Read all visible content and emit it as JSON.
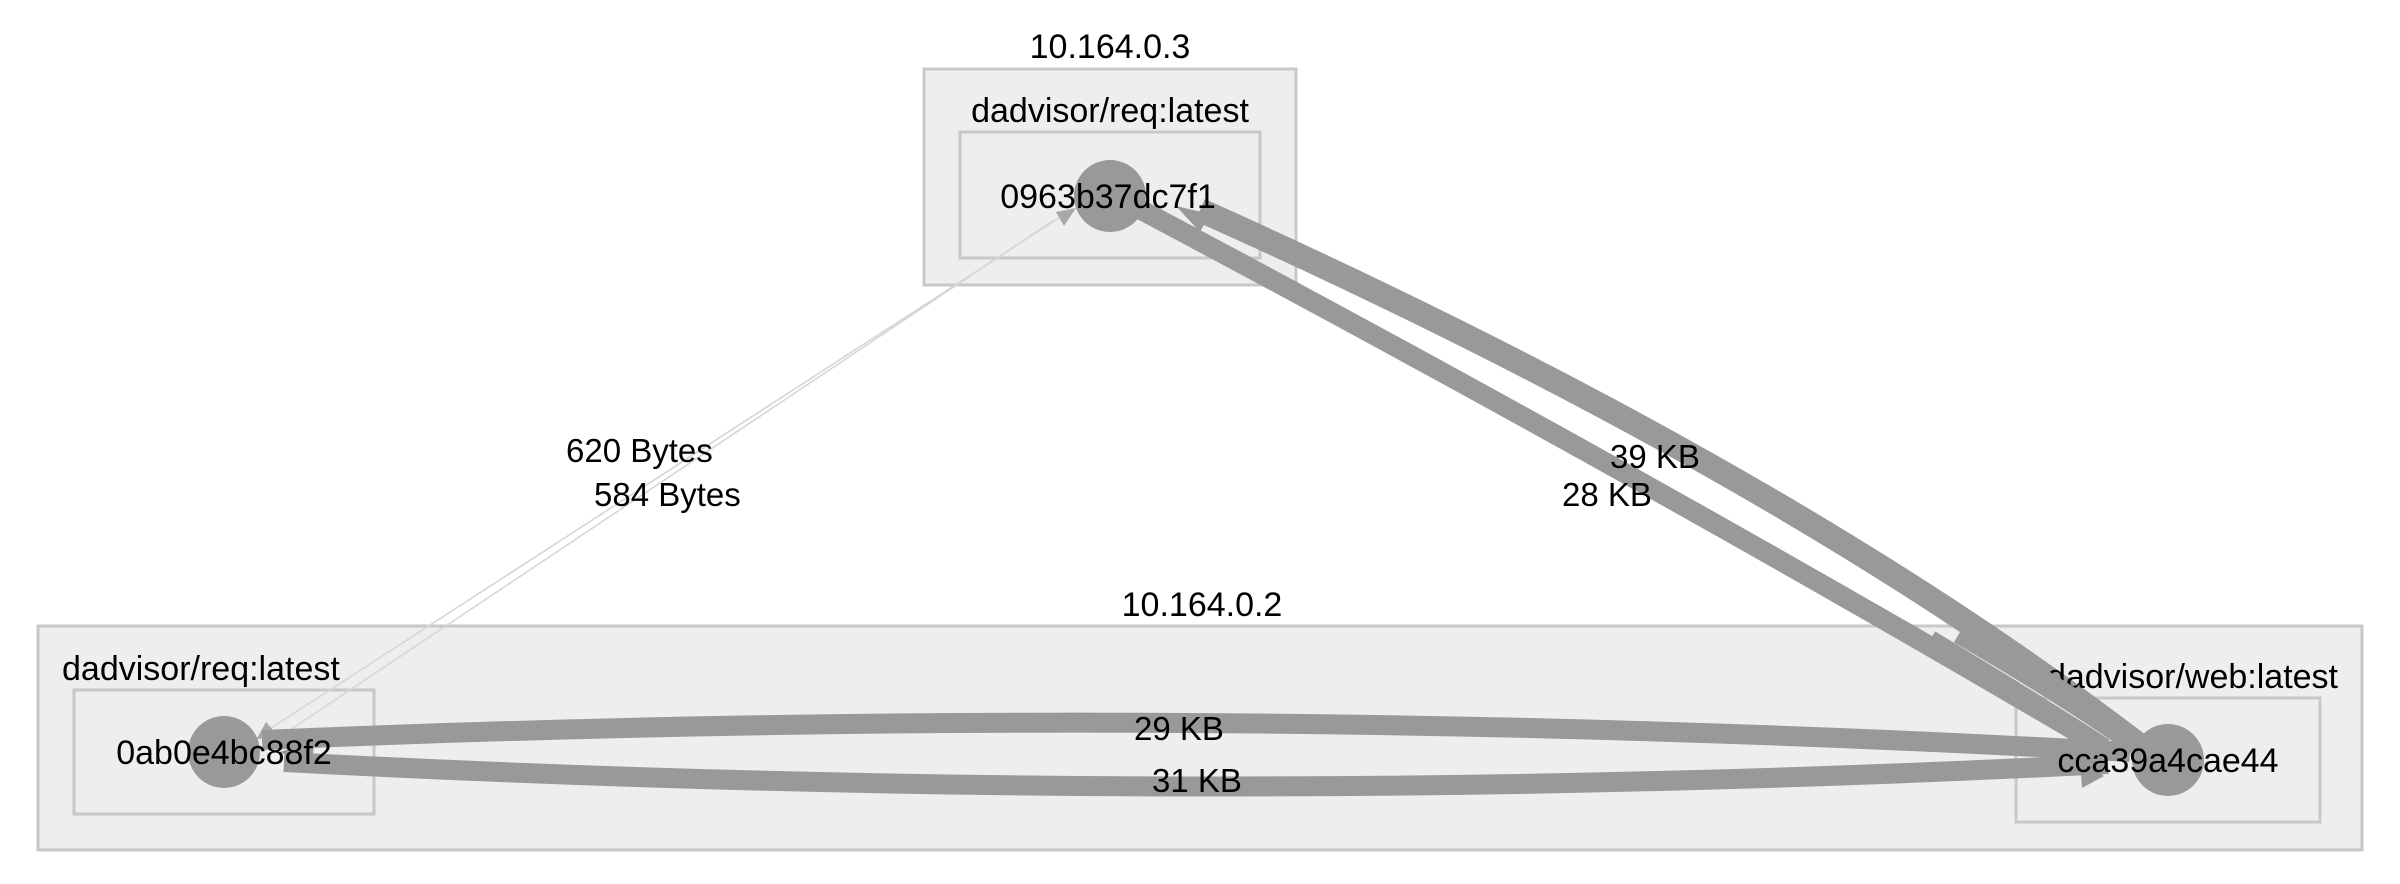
{
  "hosts": [
    {
      "ip": "10.164.0.3",
      "images": [
        {
          "name": "dadvisor/req:latest",
          "container": "0963b37dc7f1"
        }
      ]
    },
    {
      "ip": "10.164.0.2",
      "images": [
        {
          "name": "dadvisor/req:latest",
          "container": "0ab0e4bc88f2"
        },
        {
          "name": "dadvisor/web:latest",
          "container": "cca39a4cae44"
        }
      ]
    }
  ],
  "edges": [
    {
      "from": "0ab0e4bc88f2",
      "to": "0963b37dc7f1",
      "label": "620 Bytes"
    },
    {
      "from": "0963b37dc7f1",
      "to": "0ab0e4bc88f2",
      "label": "584 Bytes"
    },
    {
      "from": "0963b37dc7f1",
      "to": "cca39a4cae44",
      "label": "39 KB"
    },
    {
      "from": "cca39a4cae44",
      "to": "0963b37dc7f1",
      "label": "28 KB"
    },
    {
      "from": "cca39a4cae44",
      "to": "0ab0e4bc88f2",
      "label": "29 KB"
    },
    {
      "from": "0ab0e4bc88f2",
      "to": "cca39a4cae44",
      "label": "31 KB"
    }
  ],
  "colors": {
    "node": "#999999",
    "host_fill": "#eeeeee",
    "box_border": "#c8c8c8",
    "thin_edge": "#d6d6d6"
  }
}
